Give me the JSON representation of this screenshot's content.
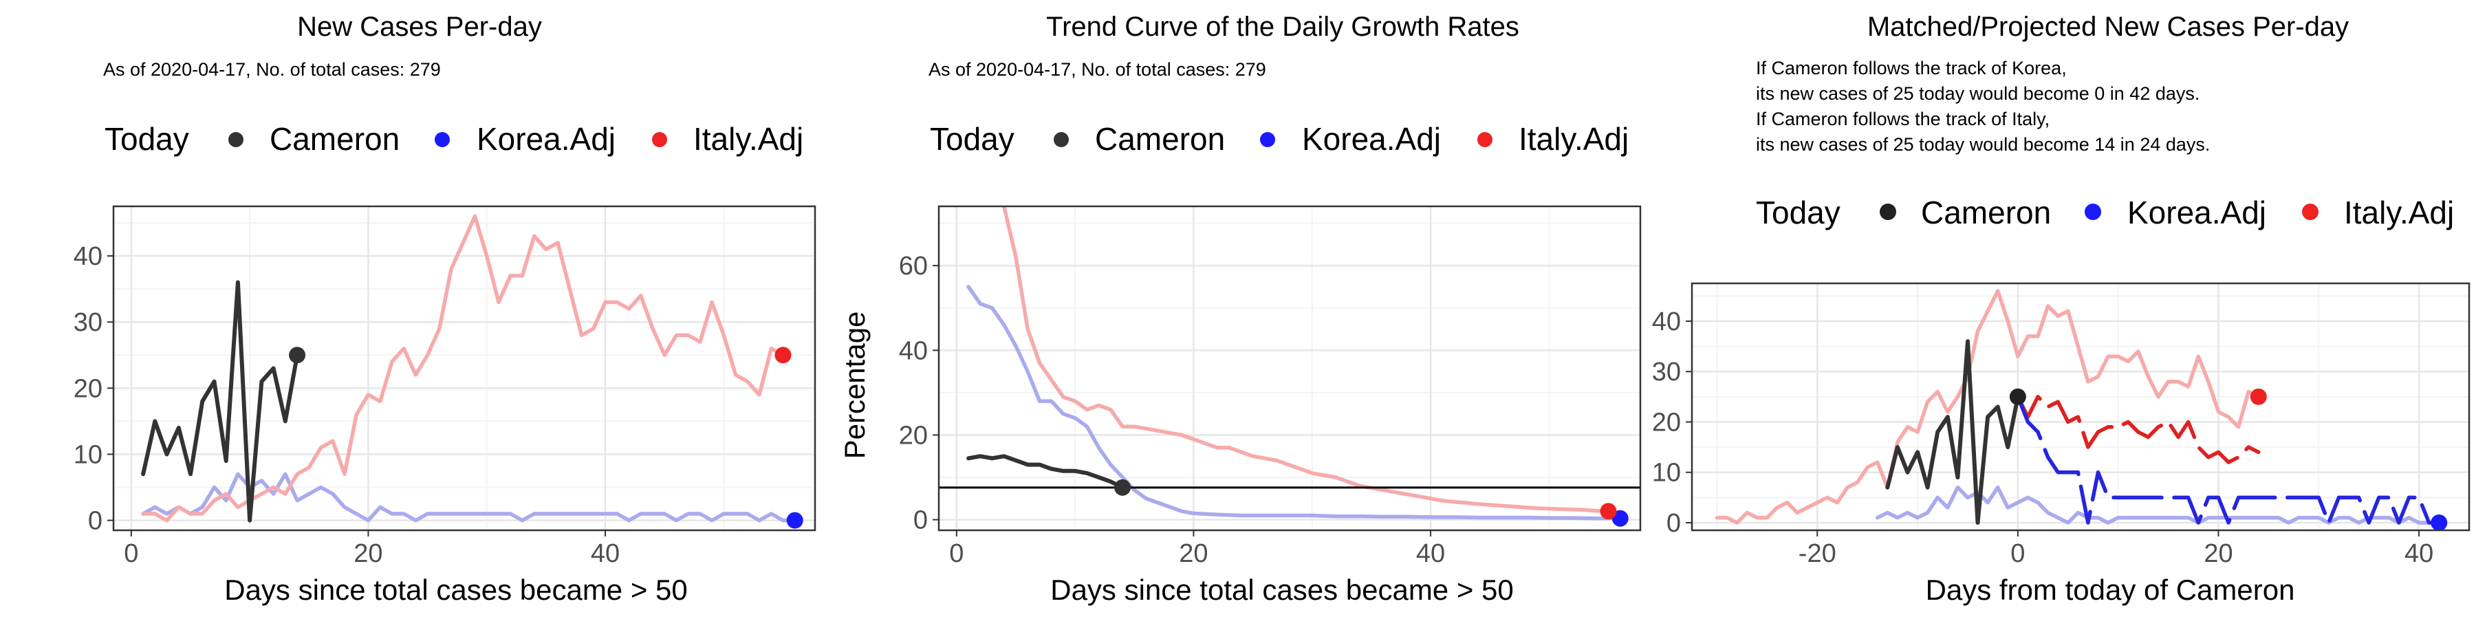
{
  "colors": {
    "today": "#222222",
    "cameron": "#333333",
    "korea_line": "#aaaaee",
    "korea_dot": "#1a1aff",
    "korea_proj": "#2626dd",
    "italy_line": "#f7aaaa",
    "italy_dot": "#ee2222",
    "italy_proj": "#dd2222",
    "grid_major": "#e6e6e6",
    "grid_minor": "#f3f3f3",
    "panel_border": "#333333"
  },
  "legend": {
    "today": "Today",
    "cameron": "Cameron",
    "korea": "Korea.Adj",
    "italy": "Italy.Adj"
  },
  "chart_data": [
    {
      "type": "line",
      "title": "New Cases Per-day",
      "subtitle": "As of 2020-04-17, No. of total cases: 279",
      "xlabel": "Days since total cases became > 50",
      "ylabel": "",
      "xlim": [
        -1.5,
        57.7
      ],
      "ylim": [
        -1.5,
        47.5
      ],
      "xticks": [
        0,
        20,
        40
      ],
      "yticks": [
        0,
        10,
        20,
        30,
        40
      ],
      "series": [
        {
          "name": "Korea.Adj",
          "role": "korea",
          "x": [
            1,
            2,
            3,
            4,
            5,
            6,
            7,
            8,
            9,
            10,
            11,
            12,
            13,
            14,
            15,
            16,
            17,
            18,
            19,
            20,
            21,
            22,
            23,
            24,
            25,
            26,
            27,
            28,
            29,
            30,
            31,
            32,
            33,
            34,
            35,
            36,
            37,
            38,
            39,
            40,
            41,
            42,
            43,
            44,
            45,
            46,
            47,
            48,
            49,
            50,
            51,
            52,
            53,
            54,
            55,
            56
          ],
          "y": [
            1,
            2,
            1,
            2,
            1,
            2,
            5,
            3,
            7,
            5,
            6,
            4,
            7,
            3,
            4,
            5,
            4,
            2,
            1,
            0,
            2,
            1,
            1,
            0,
            1,
            1,
            1,
            1,
            1,
            1,
            1,
            1,
            0,
            1,
            1,
            1,
            1,
            1,
            1,
            1,
            1,
            0,
            1,
            1,
            1,
            0,
            1,
            1,
            0,
            1,
            1,
            1,
            0,
            1,
            0,
            0
          ]
        },
        {
          "name": "Italy.Adj",
          "role": "italy",
          "x": [
            1,
            2,
            3,
            4,
            5,
            6,
            7,
            8,
            9,
            10,
            11,
            12,
            13,
            14,
            15,
            16,
            17,
            18,
            19,
            20,
            21,
            22,
            23,
            24,
            25,
            26,
            27,
            28,
            29,
            30,
            31,
            32,
            33,
            34,
            35,
            36,
            37,
            38,
            39,
            40,
            41,
            42,
            43,
            44,
            45,
            46,
            47,
            48,
            49,
            50,
            51,
            52,
            53,
            54,
            55
          ],
          "y": [
            1,
            1,
            0,
            2,
            1,
            1,
            3,
            4,
            2,
            3,
            4,
            5,
            4,
            7,
            8,
            11,
            12,
            7,
            16,
            19,
            18,
            24,
            26,
            22,
            25,
            29,
            38,
            42,
            46,
            40,
            33,
            37,
            37,
            43,
            41,
            42,
            35,
            28,
            29,
            33,
            33,
            32,
            34,
            29,
            25,
            28,
            28,
            27,
            33,
            28,
            22,
            21,
            19,
            26,
            25
          ]
        },
        {
          "name": "Cameron",
          "role": "cameron",
          "x": [
            1,
            2,
            3,
            4,
            5,
            6,
            7,
            8,
            9,
            10,
            11,
            12,
            13,
            14
          ],
          "y": [
            7,
            15,
            10,
            14,
            7,
            18,
            21,
            9,
            36,
            0,
            21,
            23,
            15,
            25
          ]
        }
      ],
      "points": [
        {
          "name": "Today",
          "role": "cameron",
          "x": 14,
          "y": 25
        },
        {
          "name": "Korea.Adj",
          "role": "korea",
          "x": 56,
          "y": 0
        },
        {
          "name": "Italy.Adj",
          "role": "italy",
          "x": 55,
          "y": 25
        }
      ]
    },
    {
      "type": "line",
      "title": "Trend Curve of the Daily Growth Rates",
      "subtitle": "As of 2020-04-17, No. of total cases: 279",
      "xlabel": "Days since total cases became > 50",
      "ylabel": "Percentage",
      "xlim": [
        -1.5,
        57.7
      ],
      "ylim": [
        -2.5,
        74
      ],
      "xticks": [
        0,
        20,
        40
      ],
      "yticks": [
        0,
        20,
        40,
        60
      ],
      "hline": 7.6,
      "series": [
        {
          "name": "Italy.Adj",
          "role": "italy",
          "x": [
            4,
            5,
            6,
            7,
            8,
            9,
            10,
            11,
            12,
            13,
            14,
            15,
            16,
            17,
            18,
            19,
            20,
            21,
            22,
            23,
            24,
            25,
            26,
            27,
            28,
            29,
            30,
            31,
            32,
            33,
            34,
            35,
            36,
            37,
            38,
            39,
            40,
            41,
            42,
            43,
            44,
            45,
            46,
            47,
            48,
            49,
            50,
            51,
            52,
            53,
            54,
            55
          ],
          "y": [
            74,
            62,
            45,
            37,
            33,
            29,
            28,
            26,
            27,
            26,
            22,
            22,
            21.5,
            21,
            20.5,
            20,
            19,
            18,
            17,
            17,
            16,
            15,
            14.5,
            14,
            13,
            12,
            11,
            10.5,
            10,
            9,
            8,
            7.5,
            7,
            6.5,
            6,
            5.5,
            5,
            4.5,
            4.2,
            4,
            3.7,
            3.5,
            3.3,
            3.1,
            2.9,
            2.7,
            2.6,
            2.5,
            2.4,
            2.3,
            2.1,
            2
          ]
        },
        {
          "name": "Korea.Adj",
          "role": "korea",
          "x": [
            1,
            2,
            3,
            4,
            5,
            6,
            7,
            8,
            9,
            10,
            11,
            12,
            13,
            14,
            15,
            16,
            17,
            18,
            19,
            20,
            22,
            24,
            26,
            28,
            30,
            32,
            34,
            36,
            38,
            40,
            42,
            44,
            46,
            48,
            50,
            52,
            54,
            56
          ],
          "y": [
            55,
            51,
            50,
            46,
            41,
            35,
            28,
            28,
            25,
            24,
            22,
            17,
            13,
            10,
            7,
            5,
            4,
            3,
            2,
            1.5,
            1.2,
            1,
            1,
            1,
            1,
            0.8,
            0.8,
            0.7,
            0.7,
            0.6,
            0.6,
            0.5,
            0.5,
            0.5,
            0.4,
            0.4,
            0.3,
            0.3
          ]
        },
        {
          "name": "Cameron",
          "role": "cameron",
          "x": [
            1,
            2,
            3,
            4,
            5,
            6,
            7,
            8,
            9,
            10,
            11,
            12,
            13,
            14
          ],
          "y": [
            14.5,
            15,
            14.5,
            15,
            14,
            13,
            13,
            12,
            11.5,
            11.5,
            11,
            10,
            9,
            7.6
          ]
        }
      ],
      "points": [
        {
          "name": "Today",
          "role": "cameron",
          "x": 14,
          "y": 7.6
        },
        {
          "name": "Korea.Adj",
          "role": "korea",
          "x": 56,
          "y": 0.3
        },
        {
          "name": "Italy.Adj",
          "role": "italy",
          "x": 55,
          "y": 2
        }
      ]
    },
    {
      "type": "line",
      "title": "Matched/Projected New Cases Per-day",
      "subtitle_lines": [
        "If Cameron follows the track of Korea,",
        "its new cases of 25 today would become 0 in 42 days.",
        "If Cameron follows the track of Italy,",
        "its new cases of 25 today would become 14 in 24 days."
      ],
      "xlabel": "Days from today of Cameron",
      "ylabel": "",
      "xlim": [
        -32.5,
        45
      ],
      "ylim": [
        -1.5,
        47.5
      ],
      "xticks": [
        -20,
        0,
        20,
        40
      ],
      "yticks": [
        0,
        10,
        20,
        30,
        40
      ],
      "series": [
        {
          "name": "Italy.Adj history",
          "role": "italy",
          "dashed": false,
          "x": [
            -30,
            -29,
            -28,
            -27,
            -26,
            -25,
            -24,
            -23,
            -22,
            -21,
            -20,
            -19,
            -18,
            -17,
            -16,
            -15,
            -14,
            -13,
            -12,
            -11,
            -10,
            -9,
            -8,
            -7,
            -6,
            -5,
            -4,
            -3,
            -2,
            -1,
            0,
            1,
            2,
            3,
            4,
            5,
            6,
            7,
            8,
            9,
            10,
            11,
            12,
            13,
            14,
            15,
            16,
            17,
            18,
            19,
            20,
            21,
            22,
            23,
            24
          ],
          "y": [
            1,
            1,
            0,
            2,
            1,
            1,
            3,
            4,
            2,
            3,
            4,
            5,
            4,
            7,
            8,
            11,
            12,
            7,
            16,
            19,
            18,
            24,
            26,
            22,
            25,
            29,
            38,
            42,
            46,
            40,
            33,
            37,
            37,
            43,
            41,
            42,
            35,
            28,
            29,
            33,
            33,
            32,
            34,
            29,
            25,
            28,
            28,
            27,
            33,
            28,
            22,
            21,
            19,
            26,
            25
          ]
        },
        {
          "name": "Korea.Adj history",
          "role": "korea",
          "dashed": false,
          "x": [
            -14,
            -13,
            -12,
            -11,
            -10,
            -9,
            -8,
            -7,
            -6,
            -5,
            -4,
            -3,
            -2,
            -1,
            0,
            1,
            2,
            3,
            4,
            5,
            6,
            7,
            8,
            9,
            10,
            11,
            12,
            13,
            14,
            15,
            16,
            17,
            18,
            19,
            20,
            21,
            22,
            23,
            24,
            25,
            26,
            27,
            28,
            29,
            30,
            31,
            32,
            33,
            34,
            35,
            36,
            37,
            38,
            39,
            40,
            41,
            42
          ],
          "y": [
            1,
            2,
            1,
            2,
            1,
            2,
            5,
            3,
            7,
            5,
            6,
            4,
            7,
            3,
            4,
            5,
            4,
            2,
            1,
            0,
            2,
            1,
            1,
            0,
            1,
            1,
            1,
            1,
            1,
            1,
            1,
            1,
            0,
            1,
            1,
            1,
            1,
            1,
            1,
            1,
            1,
            0,
            1,
            1,
            1,
            0,
            1,
            1,
            0,
            1,
            1,
            1,
            0,
            1,
            0,
            0,
            0
          ]
        },
        {
          "name": "Cameron",
          "role": "cameron",
          "dashed": false,
          "x": [
            -13,
            -12,
            -11,
            -10,
            -9,
            -8,
            -7,
            -6,
            -5,
            -4,
            -3,
            -2,
            -1,
            0
          ],
          "y": [
            7,
            15,
            10,
            14,
            7,
            18,
            21,
            9,
            36,
            0,
            21,
            23,
            15,
            25
          ]
        },
        {
          "name": "Italy projection",
          "role": "italy_proj",
          "dashed": true,
          "x": [
            0,
            1,
            2,
            3,
            4,
            5,
            6,
            7,
            8,
            9,
            10,
            11,
            12,
            13,
            14,
            15,
            16,
            17,
            18,
            19,
            20,
            21,
            22,
            23,
            24
          ],
          "y": [
            25,
            21,
            25,
            23,
            24,
            20,
            21,
            15,
            18,
            19,
            19,
            20,
            18,
            17,
            19,
            20,
            17,
            20,
            15,
            13,
            14,
            12,
            13,
            15,
            14
          ]
        },
        {
          "name": "Korea projection",
          "role": "korea_proj",
          "dashed": true,
          "x": [
            0,
            1,
            2,
            3,
            4,
            5,
            6,
            7,
            8,
            9,
            10,
            11,
            12,
            13,
            14,
            15,
            16,
            17,
            18,
            19,
            20,
            21,
            22,
            23,
            24,
            25,
            26,
            27,
            28,
            29,
            30,
            31,
            32,
            33,
            34,
            35,
            36,
            37,
            38,
            39,
            40,
            41,
            42
          ],
          "y": [
            25,
            20,
            18,
            13,
            10,
            10,
            10,
            0,
            10,
            5,
            5,
            5,
            5,
            5,
            5,
            5,
            5,
            5,
            0,
            5,
            5,
            0,
            5,
            5,
            5,
            5,
            5,
            5,
            5,
            5,
            5,
            0,
            5,
            5,
            5,
            0,
            5,
            5,
            0,
            5,
            5,
            0,
            0
          ]
        }
      ],
      "points": [
        {
          "name": "Today",
          "role": "today",
          "x": 0,
          "y": 25
        },
        {
          "name": "Korea.Adj",
          "role": "korea",
          "x": 42,
          "y": 0
        },
        {
          "name": "Italy.Adj",
          "role": "italy",
          "x": 24,
          "y": 25
        }
      ]
    }
  ]
}
